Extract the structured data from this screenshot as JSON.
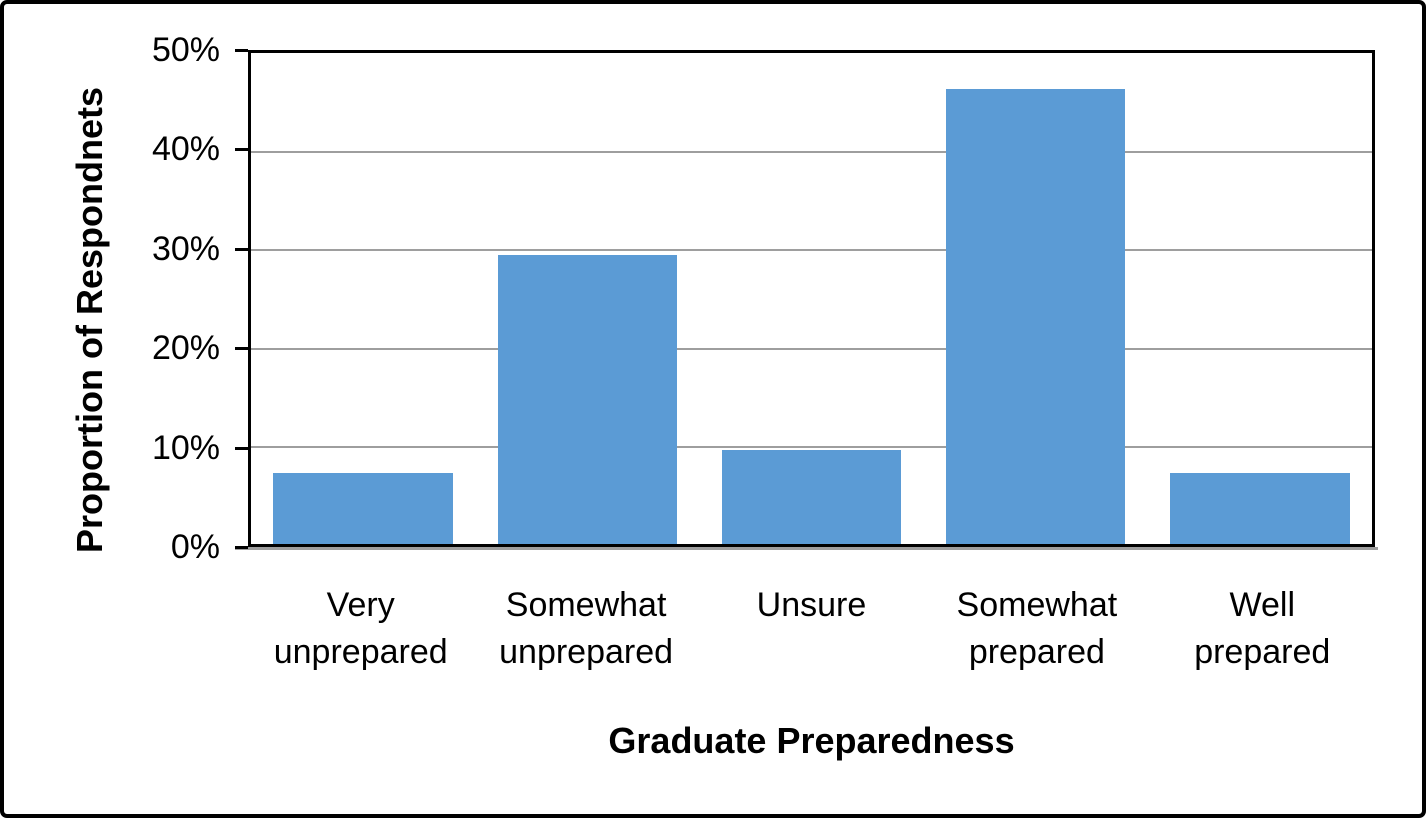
{
  "chart_data": {
    "type": "bar",
    "title": "",
    "categories": [
      "Very unprepared",
      "Somewhat unprepared",
      "Unsure",
      "Somewhat prepared",
      "Well prepared"
    ],
    "category_label_lines": [
      [
        "Very",
        "unprepared"
      ],
      [
        "Somewhat",
        "unprepared"
      ],
      [
        "Unsure"
      ],
      [
        "Somewhat",
        "prepared"
      ],
      [
        "Well",
        "prepared"
      ]
    ],
    "values": [
      7.2,
      29.4,
      9.6,
      46.3,
      7.2
    ],
    "xlabel": "Graduate Preparedness",
    "ylabel": "Proportion of Respondnets",
    "ylim": [
      0,
      50
    ],
    "ytick_interval": 10,
    "ytick_labels_top_to_bottom": [
      "50%",
      "40%",
      "30%",
      "20%",
      "10%",
      "0%"
    ],
    "grid": "horizontal",
    "legend": "none",
    "data_labels": "none",
    "colors": {
      "bar": "#5B9BD5",
      "gridline": "#9E9E9E",
      "axis": "#000000",
      "background": "#FFFFFF",
      "text": "#000000"
    }
  }
}
